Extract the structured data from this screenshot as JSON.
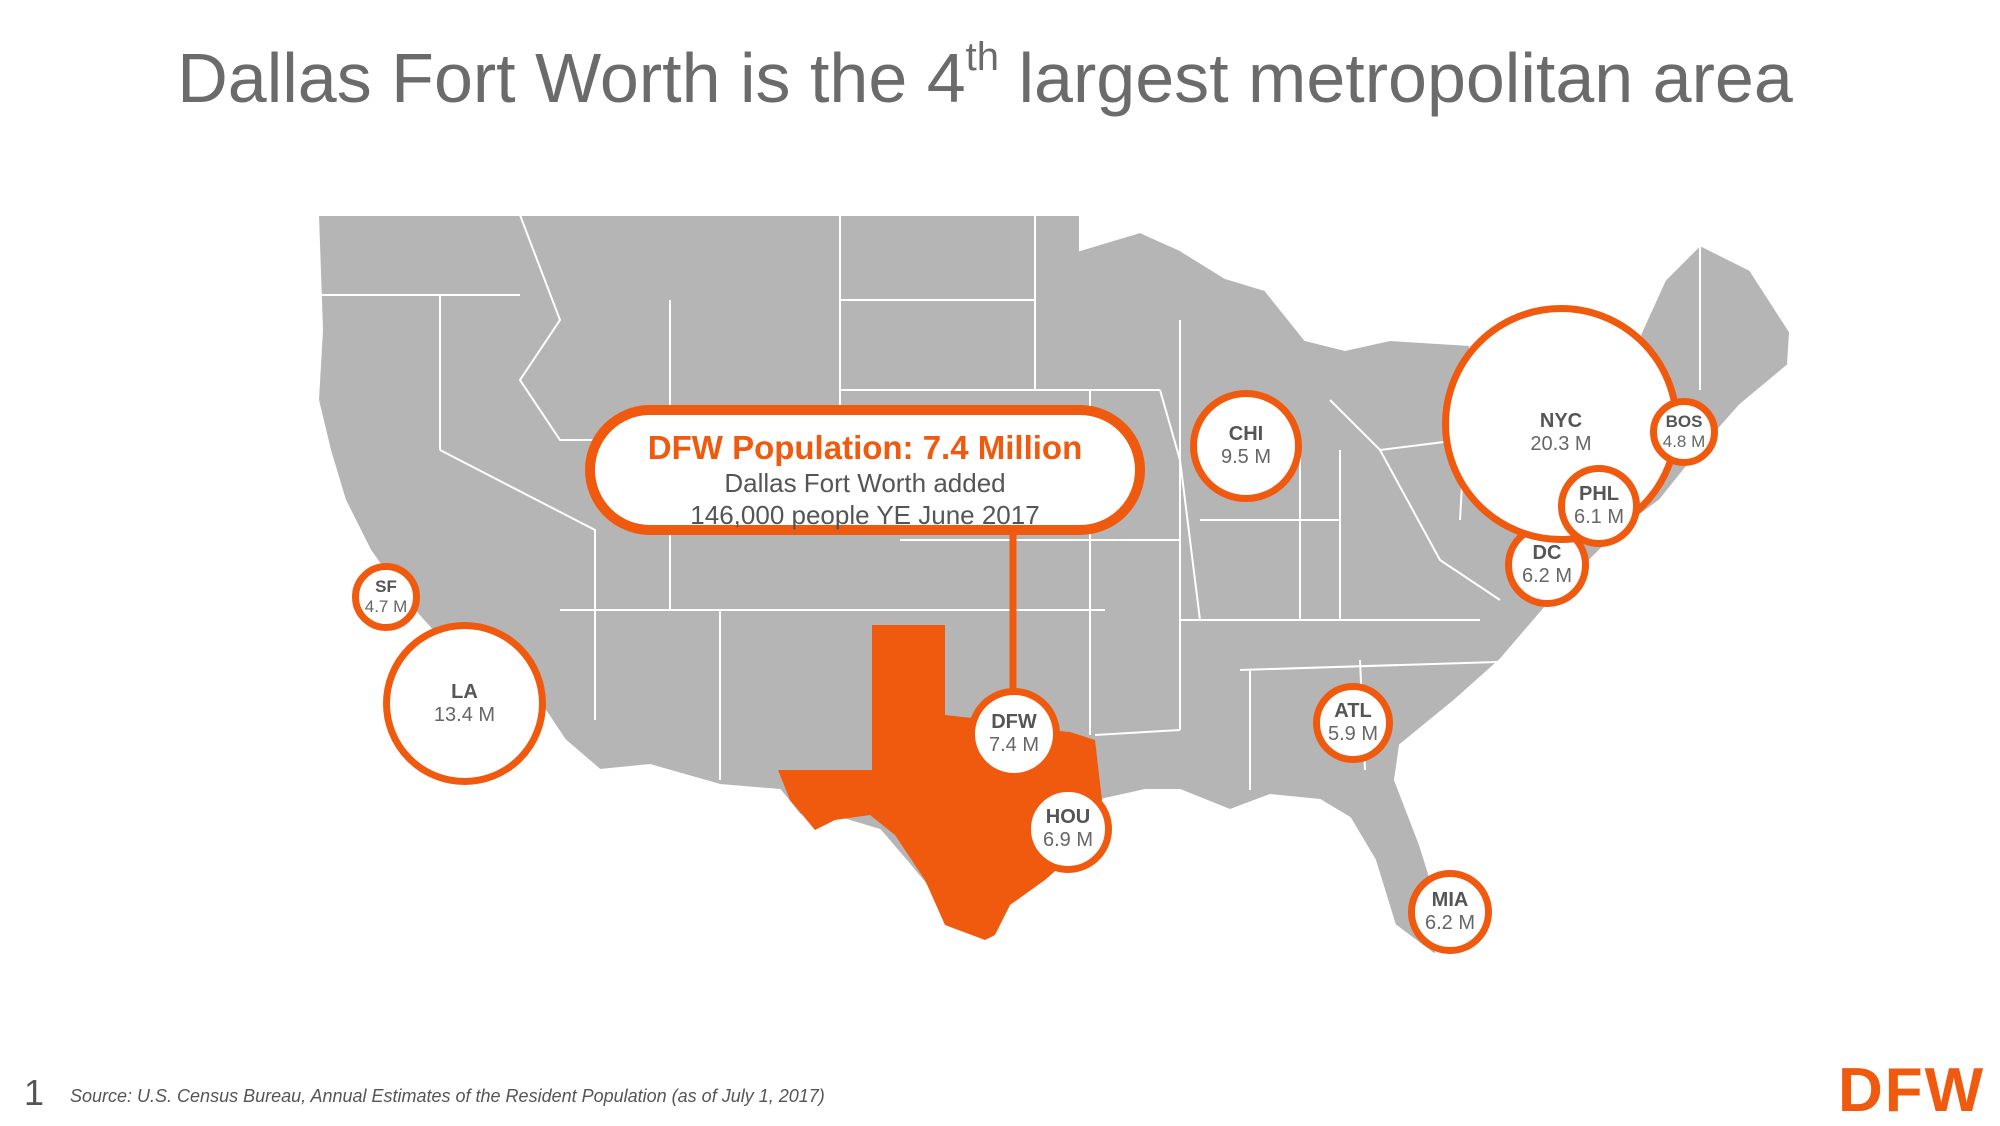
{
  "title": {
    "main": "Dallas Fort Worth is the 4",
    "sup": "th",
    "rest": " largest metropolitan area"
  },
  "callout": {
    "headline": "DFW Population: 7.4 Million",
    "line1": "Dallas Fort Worth added",
    "line2": "146,000 people YE June 2017"
  },
  "cities": [
    {
      "name": "SF",
      "value": "4.7 M"
    },
    {
      "name": "LA",
      "value": "13.4 M"
    },
    {
      "name": "DFW",
      "value": "7.4 M"
    },
    {
      "name": "HOU",
      "value": "6.9 M"
    },
    {
      "name": "CHI",
      "value": "9.5 M"
    },
    {
      "name": "ATL",
      "value": "5.9 M"
    },
    {
      "name": "MIA",
      "value": "6.2 M"
    },
    {
      "name": "DC",
      "value": "6.2 M"
    },
    {
      "name": "PHL",
      "value": "6.1 M"
    },
    {
      "name": "NYC",
      "value": "20.3 M"
    },
    {
      "name": "BOS",
      "value": "4.8 M"
    }
  ],
  "source": "Source: U.S. Census Bureau, Annual Estimates of the Resident Population (as of July 1, 2017)",
  "page_number": "1",
  "logo": "DFW",
  "colors": {
    "accent": "#f05a0f",
    "map_fill": "#b5b5b5",
    "title": "#6b6b6b"
  }
}
